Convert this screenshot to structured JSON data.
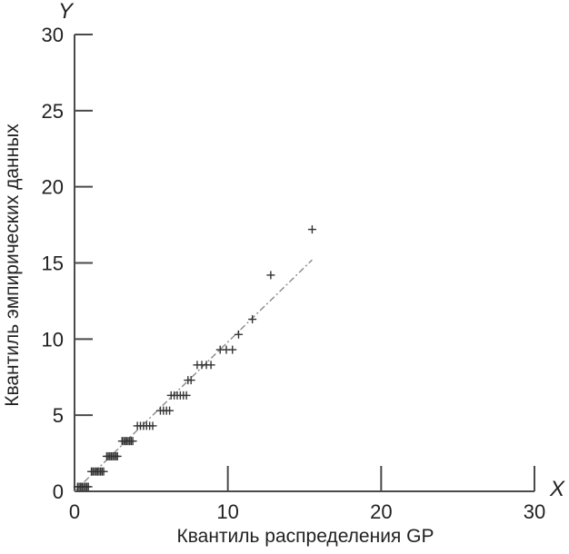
{
  "chart_data": {
    "type": "scatter",
    "title": "",
    "xlabel": "Квантиль распределения GP",
    "ylabel": "Квантиль эмпирических данных",
    "x_axis_letter": "X",
    "y_axis_letter": "Y",
    "xlim": [
      0,
      30
    ],
    "ylim": [
      0,
      30
    ],
    "x_ticks": [
      {
        "value": 0,
        "label": "0"
      },
      {
        "value": 10,
        "label": "10"
      },
      {
        "value": 20,
        "label": "20"
      },
      {
        "value": 30,
        "label": "30"
      }
    ],
    "y_ticks": [
      {
        "value": 0,
        "label": "0"
      },
      {
        "value": 5,
        "label": "5"
      },
      {
        "value": 10,
        "label": "10"
      },
      {
        "value": 15,
        "label": "15"
      },
      {
        "value": 20,
        "label": "20"
      },
      {
        "value": 25,
        "label": "25"
      },
      {
        "value": 30,
        "label": "30"
      }
    ],
    "grid": false,
    "legend": "none",
    "series": [
      {
        "points": [
          {
            "x": 0.2,
            "y": 0.3
          },
          {
            "x": 0.3,
            "y": 0.3
          },
          {
            "x": 0.4,
            "y": 0.3
          },
          {
            "x": 0.5,
            "y": 0.3
          },
          {
            "x": 0.6,
            "y": 0.3
          },
          {
            "x": 0.7,
            "y": 0.3
          },
          {
            "x": 0.8,
            "y": 0.3
          },
          {
            "x": 0.9,
            "y": 0.3
          },
          {
            "x": 1.1,
            "y": 1.3
          },
          {
            "x": 1.2,
            "y": 1.3
          },
          {
            "x": 1.3,
            "y": 1.3
          },
          {
            "x": 1.4,
            "y": 1.3
          },
          {
            "x": 1.5,
            "y": 1.3
          },
          {
            "x": 1.6,
            "y": 1.3
          },
          {
            "x": 1.7,
            "y": 1.3
          },
          {
            "x": 1.8,
            "y": 1.3
          },
          {
            "x": 1.9,
            "y": 1.3
          },
          {
            "x": 2.1,
            "y": 2.3
          },
          {
            "x": 2.2,
            "y": 2.3
          },
          {
            "x": 2.3,
            "y": 2.3
          },
          {
            "x": 2.4,
            "y": 2.3
          },
          {
            "x": 2.5,
            "y": 2.3
          },
          {
            "x": 2.6,
            "y": 2.3
          },
          {
            "x": 2.7,
            "y": 2.3
          },
          {
            "x": 2.8,
            "y": 2.3
          },
          {
            "x": 3.1,
            "y": 3.3
          },
          {
            "x": 3.2,
            "y": 3.3
          },
          {
            "x": 3.3,
            "y": 3.3
          },
          {
            "x": 3.4,
            "y": 3.3
          },
          {
            "x": 3.5,
            "y": 3.3
          },
          {
            "x": 3.6,
            "y": 3.3
          },
          {
            "x": 3.7,
            "y": 3.3
          },
          {
            "x": 3.8,
            "y": 3.3
          },
          {
            "x": 4.1,
            "y": 4.3
          },
          {
            "x": 4.3,
            "y": 4.3
          },
          {
            "x": 4.5,
            "y": 4.3
          },
          {
            "x": 4.7,
            "y": 4.3
          },
          {
            "x": 4.9,
            "y": 4.3
          },
          {
            "x": 5.1,
            "y": 4.3
          },
          {
            "x": 5.6,
            "y": 5.3
          },
          {
            "x": 5.8,
            "y": 5.3
          },
          {
            "x": 6.0,
            "y": 5.3
          },
          {
            "x": 6.2,
            "y": 5.3
          },
          {
            "x": 6.3,
            "y": 6.3
          },
          {
            "x": 6.5,
            "y": 6.3
          },
          {
            "x": 6.7,
            "y": 6.3
          },
          {
            "x": 6.9,
            "y": 6.3
          },
          {
            "x": 7.1,
            "y": 6.3
          },
          {
            "x": 7.3,
            "y": 6.3
          },
          {
            "x": 7.4,
            "y": 7.3
          },
          {
            "x": 7.6,
            "y": 7.3
          },
          {
            "x": 8.0,
            "y": 8.3
          },
          {
            "x": 8.3,
            "y": 8.3
          },
          {
            "x": 8.6,
            "y": 8.3
          },
          {
            "x": 8.9,
            "y": 8.3
          },
          {
            "x": 9.5,
            "y": 9.3
          },
          {
            "x": 9.9,
            "y": 9.3
          },
          {
            "x": 10.3,
            "y": 9.3
          },
          {
            "x": 10.7,
            "y": 10.3
          },
          {
            "x": 11.6,
            "y": 11.3
          },
          {
            "x": 12.8,
            "y": 14.2
          },
          {
            "x": 15.5,
            "y": 17.2
          }
        ]
      }
    ],
    "fit_line": {
      "x": [
        0,
        15.5
      ],
      "y": [
        0,
        15.2
      ],
      "style": "dash-dot"
    }
  }
}
